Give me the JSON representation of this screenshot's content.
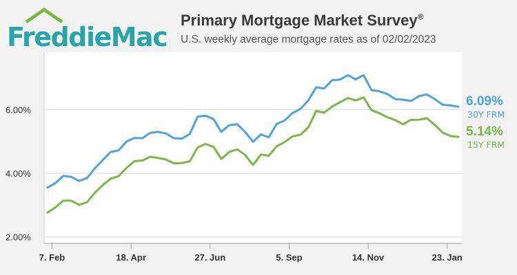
{
  "logo": {
    "text": "FreddieMac",
    "color": "#2aa3a9"
  },
  "header": {
    "title": "Primary Mortgage Market Survey",
    "title_mark": "®",
    "subtitle": "U.S. weekly average mortgage rates as of 02/02/2023"
  },
  "chart_data": {
    "type": "line",
    "x": [
      "2022-02-03",
      "2022-02-10",
      "2022-02-17",
      "2022-02-24",
      "2022-03-03",
      "2022-03-10",
      "2022-03-17",
      "2022-03-24",
      "2022-03-31",
      "2022-04-07",
      "2022-04-14",
      "2022-04-21",
      "2022-04-28",
      "2022-05-05",
      "2022-05-12",
      "2022-05-19",
      "2022-05-26",
      "2022-06-02",
      "2022-06-09",
      "2022-06-16",
      "2022-06-23",
      "2022-06-30",
      "2022-07-07",
      "2022-07-14",
      "2022-07-21",
      "2022-07-28",
      "2022-08-04",
      "2022-08-11",
      "2022-08-18",
      "2022-08-25",
      "2022-09-01",
      "2022-09-08",
      "2022-09-15",
      "2022-09-22",
      "2022-09-29",
      "2022-10-06",
      "2022-10-13",
      "2022-10-20",
      "2022-10-27",
      "2022-11-03",
      "2022-11-10",
      "2022-11-17",
      "2022-11-23",
      "2022-12-01",
      "2022-12-08",
      "2022-12-15",
      "2022-12-22",
      "2022-12-29",
      "2023-01-05",
      "2023-01-12",
      "2023-01-19",
      "2023-01-26",
      "2023-02-02"
    ],
    "x_ticks": [
      "7. Feb",
      "18. Apr",
      "27. Jun",
      "5. Sep",
      "14. Nov",
      "23. Jan"
    ],
    "x_tick_dates": [
      "2022-02-07",
      "2022-04-18",
      "2022-06-27",
      "2022-09-05",
      "2022-11-14",
      "2023-01-23"
    ],
    "ylim": [
      1.8,
      7.8
    ],
    "y_ticks": [
      2,
      4,
      6
    ],
    "y_tick_labels": [
      "2.00%",
      "4.00%",
      "6.00%"
    ],
    "grid": true,
    "series": [
      {
        "name": "30Y FRM",
        "color": "#4fa3dc",
        "end_label": "6.09%",
        "values": [
          3.55,
          3.69,
          3.92,
          3.89,
          3.76,
          3.85,
          4.16,
          4.42,
          4.67,
          4.72,
          5.0,
          5.11,
          5.1,
          5.27,
          5.3,
          5.25,
          5.1,
          5.09,
          5.23,
          5.78,
          5.81,
          5.7,
          5.3,
          5.51,
          5.54,
          5.3,
          4.99,
          5.22,
          5.13,
          5.55,
          5.66,
          5.89,
          6.02,
          6.29,
          6.7,
          6.66,
          6.92,
          6.94,
          7.08,
          6.95,
          7.08,
          6.61,
          6.58,
          6.49,
          6.33,
          6.31,
          6.27,
          6.42,
          6.48,
          6.33,
          6.15,
          6.13,
          6.09
        ]
      },
      {
        "name": "15Y FRM",
        "color": "#7ab648",
        "end_label": "5.14%",
        "values": [
          2.77,
          2.93,
          3.14,
          3.14,
          3.01,
          3.09,
          3.39,
          3.63,
          3.83,
          3.91,
          4.17,
          4.38,
          4.4,
          4.52,
          4.48,
          4.43,
          4.31,
          4.32,
          4.38,
          4.81,
          4.92,
          4.83,
          4.45,
          4.67,
          4.75,
          4.58,
          4.26,
          4.59,
          4.55,
          4.85,
          4.98,
          5.16,
          5.21,
          5.44,
          5.96,
          5.9,
          6.09,
          6.23,
          6.36,
          6.29,
          6.38,
          5.98,
          5.9,
          5.76,
          5.67,
          5.54,
          5.68,
          5.68,
          5.73,
          5.52,
          5.28,
          5.17,
          5.14
        ]
      }
    ]
  }
}
